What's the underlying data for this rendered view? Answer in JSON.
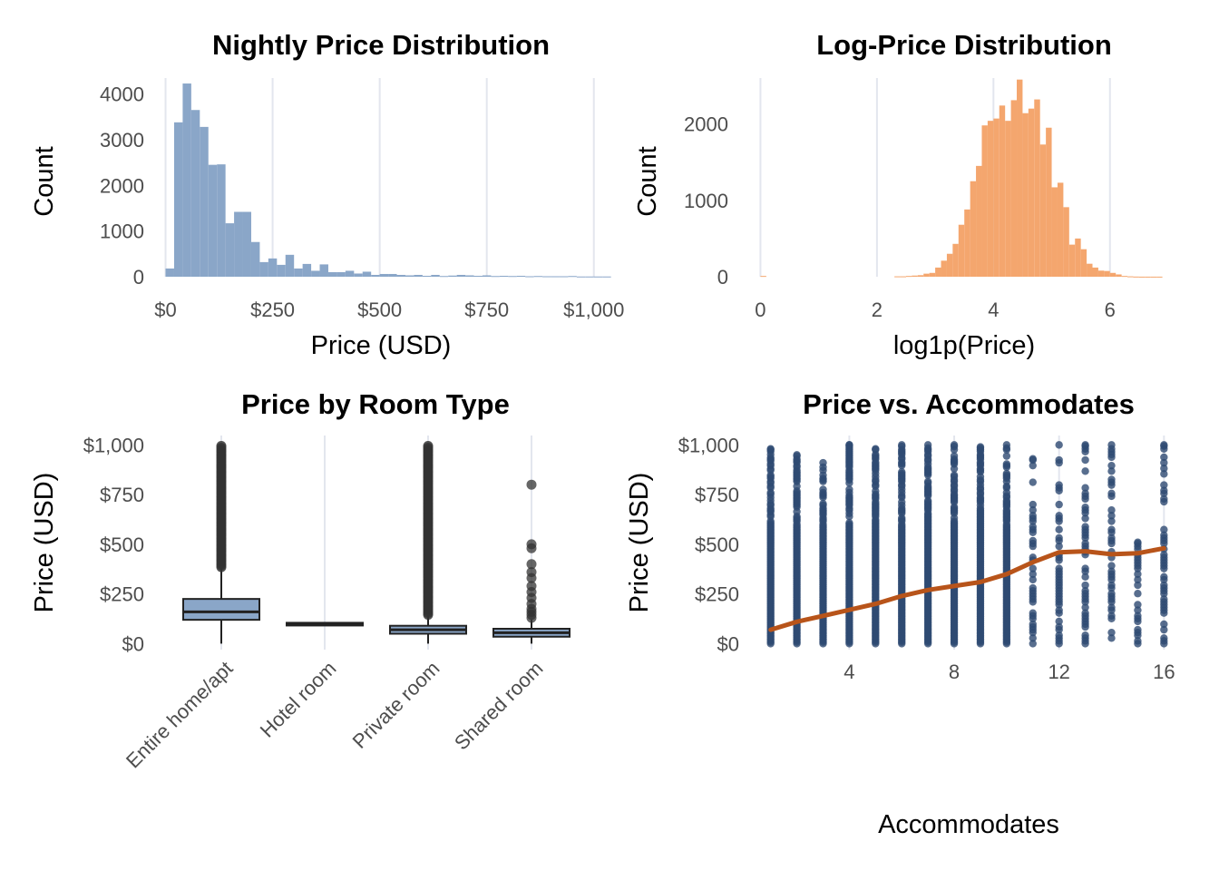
{
  "chart_data": [
    {
      "type": "bar",
      "title": "Nightly Price Distribution",
      "xlabel": "Price (USD)",
      "ylabel": "Count",
      "color": "#8aa6c8",
      "x_ticks": [
        {
          "v": 0,
          "label": "$0"
        },
        {
          "v": 250,
          "label": "$250"
        },
        {
          "v": 500,
          "label": "$500"
        },
        {
          "v": 750,
          "label": "$750"
        },
        {
          "v": 1000,
          "label": "$1,000"
        }
      ],
      "y_ticks": [
        {
          "v": 0,
          "label": "0"
        },
        {
          "v": 1000,
          "label": "1000"
        },
        {
          "v": 2000,
          "label": "2000"
        },
        {
          "v": 3000,
          "label": "3000"
        },
        {
          "v": 4000,
          "label": "4000"
        }
      ],
      "xlim": [
        -35,
        1045
      ],
      "ylim": [
        0,
        4350
      ],
      "bin_start": 0,
      "bin_width": 20,
      "values": [
        180,
        3380,
        4230,
        3650,
        3280,
        2450,
        2460,
        1170,
        1420,
        1420,
        760,
        320,
        400,
        260,
        480,
        180,
        280,
        130,
        270,
        100,
        100,
        130,
        70,
        110,
        40,
        60,
        60,
        40,
        30,
        40,
        20,
        40,
        15,
        25,
        40,
        30,
        20,
        30,
        15,
        20,
        15,
        20,
        10,
        15,
        10,
        10,
        10,
        15,
        5,
        5,
        5,
        5
      ]
    },
    {
      "type": "bar",
      "title": "Log-Price Distribution",
      "xlabel": "log1p(Price)",
      "ylabel": "Count",
      "color": "#f4a66e",
      "x_ticks": [
        {
          "v": 0,
          "label": "0"
        },
        {
          "v": 2,
          "label": "2"
        },
        {
          "v": 4,
          "label": "4"
        },
        {
          "v": 6,
          "label": "6"
        }
      ],
      "y_ticks": [
        {
          "v": 0,
          "label": "0"
        },
        {
          "v": 1000,
          "label": "1000"
        },
        {
          "v": 2000,
          "label": "2000"
        }
      ],
      "xlim": [
        -0.1,
        7.0
      ],
      "ylim": [
        0,
        2600
      ],
      "bin_start": 2.3,
      "bin_width": 0.1,
      "values": [
        5,
        5,
        10,
        15,
        20,
        40,
        50,
        120,
        210,
        300,
        430,
        680,
        880,
        1250,
        1450,
        1980,
        2040,
        2070,
        2240,
        2040,
        2310,
        2580,
        2140,
        2200,
        2320,
        1730,
        1950,
        1170,
        1230,
        910,
        420,
        500,
        360,
        170,
        120,
        80,
        75,
        50,
        30,
        10,
        5,
        2,
        1,
        1,
        1,
        1
      ],
      "extra_bins": [
        {
          "x": 0.0,
          "width": 0.1,
          "value": 10
        }
      ]
    },
    {
      "type": "box",
      "title": "Price by Room Type",
      "xlabel": "",
      "ylabel": "Price (USD)",
      "categories": [
        "Entire home/apt",
        "Hotel room",
        "Private room",
        "Shared room"
      ],
      "y_ticks": [
        {
          "v": 0,
          "label": "$0"
        },
        {
          "v": 250,
          "label": "$250"
        },
        {
          "v": 500,
          "label": "$500"
        },
        {
          "v": 750,
          "label": "$750"
        },
        {
          "v": 1000,
          "label": "$1,000"
        }
      ],
      "ylim": [
        -30,
        1020
      ],
      "fill": "#8aa6c8",
      "boxes": [
        {
          "q1": 120,
          "median": 160,
          "q3": 225,
          "whisker_low": 0,
          "whisker_high": 380,
          "outliers_range": [
            385,
            1000
          ]
        },
        {
          "q1": 95,
          "median": 100,
          "q3": 105,
          "whisker_low": 95,
          "whisker_high": 105,
          "outliers_range": null
        },
        {
          "q1": 50,
          "median": 70,
          "q3": 90,
          "whisker_low": 0,
          "whisker_high": 140,
          "outliers_range": [
            145,
            1000
          ]
        },
        {
          "q1": 35,
          "median": 55,
          "q3": 75,
          "whisker_low": 0,
          "whisker_high": 120,
          "outliers": [
            130,
            145,
            160,
            175,
            200,
            230,
            260,
            290,
            330,
            360,
            400,
            480,
            500,
            800
          ]
        }
      ]
    },
    {
      "type": "scatter",
      "title": "Price vs. Accommodates",
      "xlabel": "Accommodates",
      "ylabel": "Price (USD)",
      "point_color": "#2e4a72",
      "trend_color": "#b8541a",
      "x_ticks": [
        {
          "v": 4,
          "label": "4"
        },
        {
          "v": 8,
          "label": "8"
        },
        {
          "v": 12,
          "label": "12"
        },
        {
          "v": 16,
          "label": "16"
        }
      ],
      "y_ticks": [
        {
          "v": 0,
          "label": "$0"
        },
        {
          "v": 250,
          "label": "$250"
        },
        {
          "v": 500,
          "label": "$500"
        },
        {
          "v": 750,
          "label": "$750"
        },
        {
          "v": 1000,
          "label": "$1,000"
        }
      ],
      "xlim": [
        0.7,
        16.3
      ],
      "ylim": [
        -30,
        1020
      ],
      "columns": [
        {
          "x": 1,
          "max": 980
        },
        {
          "x": 2,
          "max": 950
        },
        {
          "x": 3,
          "max": 910
        },
        {
          "x": 4,
          "max": 1000
        },
        {
          "x": 5,
          "max": 980
        },
        {
          "x": 6,
          "max": 1000
        },
        {
          "x": 7,
          "max": 1000
        },
        {
          "x": 8,
          "max": 1000
        },
        {
          "x": 9,
          "max": 990
        },
        {
          "x": 10,
          "max": 1000
        },
        {
          "x": 11,
          "max": 930
        },
        {
          "x": 12,
          "max": 1000
        },
        {
          "x": 13,
          "max": 1000
        },
        {
          "x": 14,
          "max": 1000
        },
        {
          "x": 15,
          "max": 510
        },
        {
          "x": 16,
          "max": 1000
        }
      ],
      "trend": [
        [
          1,
          70
        ],
        [
          2,
          110
        ],
        [
          3,
          140
        ],
        [
          4,
          170
        ],
        [
          5,
          200
        ],
        [
          6,
          240
        ],
        [
          7,
          270
        ],
        [
          8,
          290
        ],
        [
          9,
          310
        ],
        [
          10,
          350
        ],
        [
          11,
          410
        ],
        [
          12,
          460
        ],
        [
          13,
          465
        ],
        [
          14,
          450
        ],
        [
          15,
          455
        ],
        [
          16,
          480
        ]
      ]
    }
  ]
}
